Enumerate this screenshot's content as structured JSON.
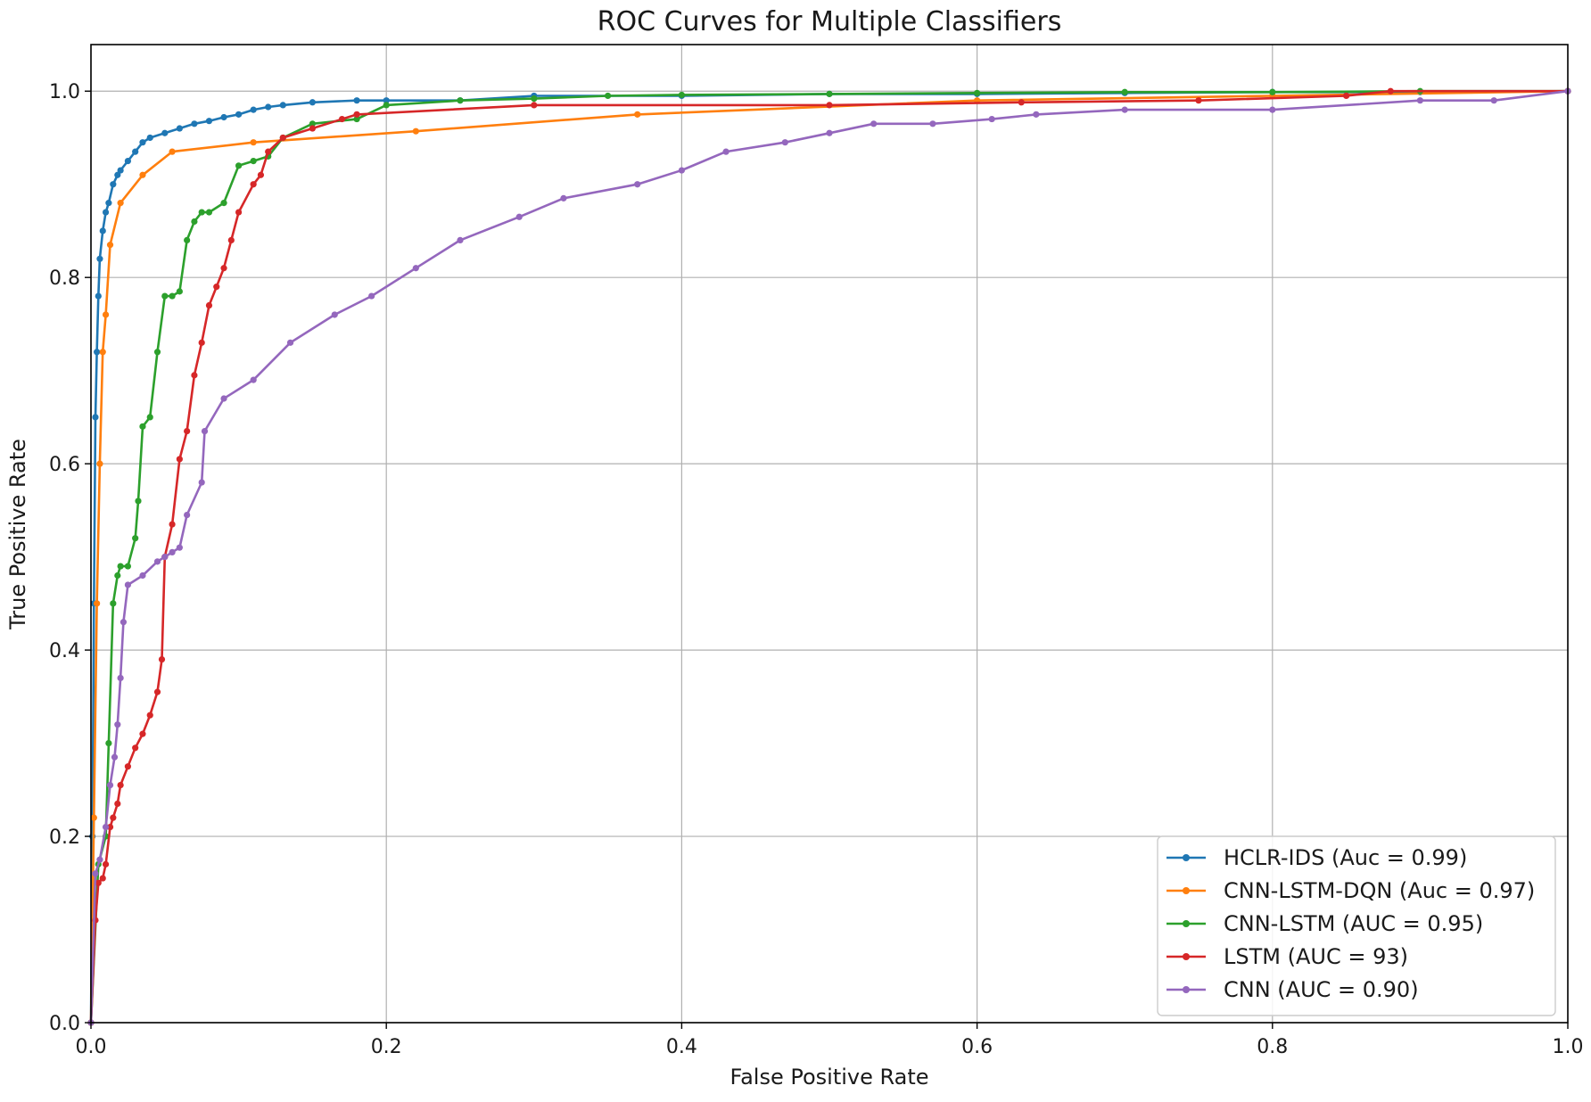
{
  "chart_data": {
    "type": "line",
    "title": "ROC Curves for Multiple Classifiers",
    "xlabel": "False Positive Rate",
    "ylabel": "True Positive Rate",
    "xlim": [
      0,
      1
    ],
    "ylim": [
      0,
      1.05
    ],
    "x_ticks": [
      "0.0",
      "0.2",
      "0.4",
      "0.6",
      "0.8",
      "1.0"
    ],
    "y_ticks": [
      "0.0",
      "0.2",
      "0.4",
      "0.6",
      "0.8",
      "1.0"
    ],
    "grid": true,
    "legend_position": "bottom-right",
    "series": [
      {
        "name": "HCLR-IDS (Auc = 0.99)",
        "color": "#1f77b4",
        "x": [
          0,
          0.001,
          0.002,
          0.003,
          0.004,
          0.005,
          0.006,
          0.008,
          0.01,
          0.012,
          0.015,
          0.018,
          0.02,
          0.025,
          0.03,
          0.035,
          0.04,
          0.05,
          0.06,
          0.07,
          0.08,
          0.09,
          0.1,
          0.11,
          0.12,
          0.13,
          0.15,
          0.18,
          0.2,
          0.25,
          0.3,
          0.4,
          0.5,
          0.6,
          0.7,
          0.8,
          0.9,
          1.0
        ],
        "y": [
          0,
          0.2,
          0.45,
          0.65,
          0.72,
          0.78,
          0.82,
          0.85,
          0.87,
          0.88,
          0.9,
          0.91,
          0.915,
          0.925,
          0.935,
          0.945,
          0.95,
          0.955,
          0.96,
          0.965,
          0.968,
          0.972,
          0.975,
          0.98,
          0.983,
          0.985,
          0.988,
          0.99,
          0.99,
          0.99,
          0.995,
          0.995,
          0.997,
          0.997,
          0.998,
          0.999,
          0.999,
          1.0
        ]
      },
      {
        "name": "CNN-LSTM-DQN (Auc = 0.97)",
        "color": "#ff7f0e",
        "x": [
          0,
          0.002,
          0.004,
          0.006,
          0.008,
          0.01,
          0.013,
          0.02,
          0.035,
          0.055,
          0.11,
          0.22,
          0.37,
          0.6,
          0.8,
          1.0
        ],
        "y": [
          0,
          0.22,
          0.45,
          0.6,
          0.72,
          0.76,
          0.835,
          0.88,
          0.91,
          0.935,
          0.945,
          0.957,
          0.975,
          0.99,
          0.995,
          1.0
        ]
      },
      {
        "name": "CNN-LSTM (AUC = 0.95)",
        "color": "#2ca02c",
        "x": [
          0,
          0.005,
          0.01,
          0.012,
          0.015,
          0.018,
          0.02,
          0.025,
          0.03,
          0.032,
          0.035,
          0.04,
          0.045,
          0.05,
          0.055,
          0.06,
          0.065,
          0.07,
          0.075,
          0.08,
          0.09,
          0.1,
          0.11,
          0.12,
          0.13,
          0.15,
          0.18,
          0.2,
          0.25,
          0.3,
          0.35,
          0.4,
          0.5,
          0.6,
          0.7,
          0.8,
          0.9,
          1.0
        ],
        "y": [
          0,
          0.17,
          0.2,
          0.3,
          0.45,
          0.48,
          0.49,
          0.49,
          0.52,
          0.56,
          0.64,
          0.65,
          0.72,
          0.78,
          0.78,
          0.785,
          0.84,
          0.86,
          0.87,
          0.87,
          0.88,
          0.92,
          0.925,
          0.93,
          0.95,
          0.965,
          0.97,
          0.985,
          0.99,
          0.992,
          0.995,
          0.996,
          0.997,
          0.998,
          0.999,
          0.999,
          1.0,
          1.0
        ]
      },
      {
        "name": "LSTM (AUC = 93)",
        "color": "#d62728",
        "x": [
          0,
          0.003,
          0.005,
          0.008,
          0.01,
          0.013,
          0.015,
          0.018,
          0.02,
          0.025,
          0.03,
          0.035,
          0.04,
          0.045,
          0.048,
          0.05,
          0.055,
          0.06,
          0.065,
          0.07,
          0.075,
          0.08,
          0.085,
          0.09,
          0.095,
          0.1,
          0.11,
          0.115,
          0.12,
          0.13,
          0.15,
          0.17,
          0.18,
          0.3,
          0.5,
          0.63,
          0.75,
          0.85,
          0.88,
          1.0
        ],
        "y": [
          0,
          0.11,
          0.15,
          0.155,
          0.17,
          0.21,
          0.22,
          0.235,
          0.255,
          0.275,
          0.295,
          0.31,
          0.33,
          0.355,
          0.39,
          0.5,
          0.535,
          0.605,
          0.635,
          0.695,
          0.73,
          0.77,
          0.79,
          0.81,
          0.84,
          0.87,
          0.9,
          0.91,
          0.935,
          0.95,
          0.96,
          0.97,
          0.975,
          0.985,
          0.985,
          0.988,
          0.99,
          0.995,
          1.0,
          1.0
        ]
      },
      {
        "name": "CNN (AUC = 0.90)",
        "color": "#9467bd",
        "x": [
          0,
          0.003,
          0.006,
          0.01,
          0.013,
          0.016,
          0.018,
          0.02,
          0.022,
          0.025,
          0.035,
          0.045,
          0.05,
          0.055,
          0.06,
          0.065,
          0.075,
          0.077,
          0.09,
          0.11,
          0.135,
          0.165,
          0.19,
          0.22,
          0.25,
          0.29,
          0.32,
          0.37,
          0.4,
          0.43,
          0.47,
          0.5,
          0.53,
          0.57,
          0.61,
          0.64,
          0.7,
          0.8,
          0.9,
          0.95,
          1.0
        ],
        "y": [
          0,
          0.16,
          0.175,
          0.21,
          0.255,
          0.285,
          0.32,
          0.37,
          0.43,
          0.47,
          0.48,
          0.495,
          0.5,
          0.505,
          0.51,
          0.545,
          0.58,
          0.635,
          0.67,
          0.69,
          0.73,
          0.76,
          0.78,
          0.81,
          0.84,
          0.865,
          0.885,
          0.9,
          0.915,
          0.935,
          0.945,
          0.955,
          0.965,
          0.965,
          0.97,
          0.975,
          0.98,
          0.98,
          0.99,
          0.99,
          1.0
        ]
      }
    ]
  }
}
